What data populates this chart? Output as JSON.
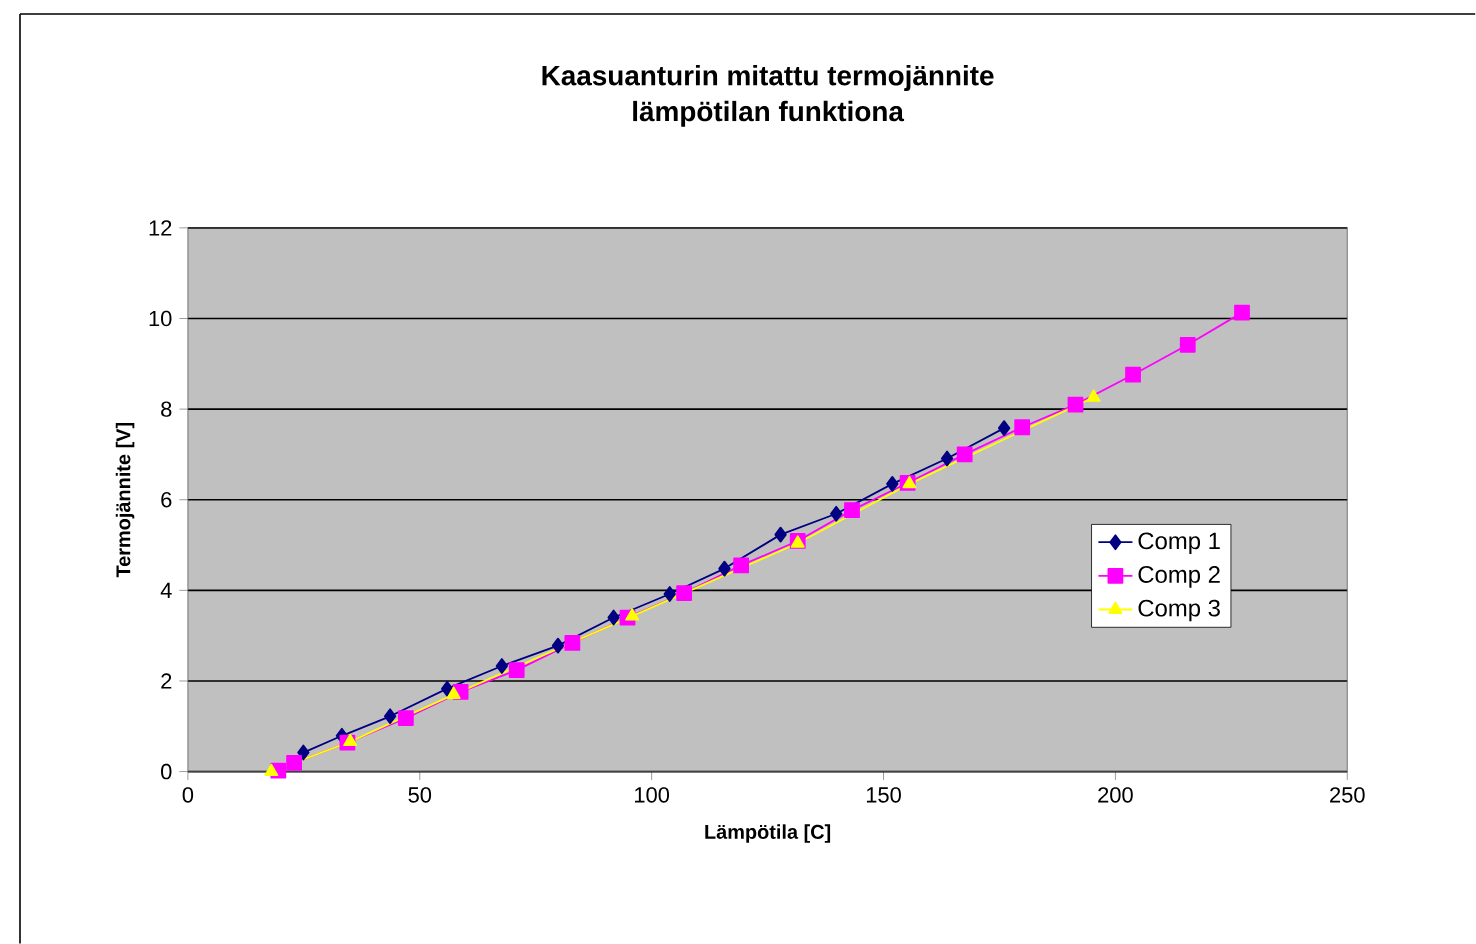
{
  "chart_data": {
    "type": "line",
    "title": "Kaasuanturin mitattu termojännite\nlämpötilan funktiona",
    "xlabel": "Lämpötila [C]",
    "ylabel": "Termojännite [V]",
    "series": [
      {
        "name": "Comp 1",
        "color": "#000080",
        "marker": "diamond",
        "x": [
          24.9,
          33.2,
          43.6,
          55.9,
          67.7,
          79.8,
          91.8,
          103.9,
          115.7,
          127.8,
          139.8,
          151.9,
          163.7,
          176.0
        ],
        "values": [
          0.42,
          0.79,
          1.22,
          1.83,
          2.33,
          2.78,
          3.4,
          3.92,
          4.48,
          5.23,
          5.69,
          6.35,
          6.91,
          7.58
        ]
      },
      {
        "name": "Comp 2",
        "color": "#ff00ff",
        "marker": "square",
        "x": [
          19.5,
          22.9,
          34.4,
          47.0,
          58.8,
          70.9,
          82.9,
          94.8,
          107.0,
          119.3,
          131.5,
          143.2,
          155.2,
          167.5,
          179.9,
          191.4,
          203.8,
          215.6,
          227.3
        ],
        "values": [
          0.02,
          0.19,
          0.64,
          1.18,
          1.76,
          2.24,
          2.84,
          3.4,
          3.94,
          4.55,
          5.09,
          5.77,
          6.37,
          7.0,
          7.6,
          8.1,
          8.76,
          9.42,
          10.13
        ]
      },
      {
        "name": "Comp 3",
        "color": "#ffff00",
        "marker": "triangle",
        "x": [
          18.0,
          35.0,
          57.3,
          95.8,
          131.5,
          155.6,
          195.3
        ],
        "values": [
          0.0,
          0.66,
          1.7,
          3.43,
          5.04,
          6.35,
          8.26
        ]
      }
    ],
    "xlim": [
      0,
      250
    ],
    "xticks": [
      0,
      50,
      100,
      150,
      200,
      250
    ],
    "ylim": [
      0,
      12
    ],
    "yticks": [
      0,
      2,
      4,
      6,
      8,
      10,
      12
    ],
    "grid": "y",
    "legend": "right"
  }
}
